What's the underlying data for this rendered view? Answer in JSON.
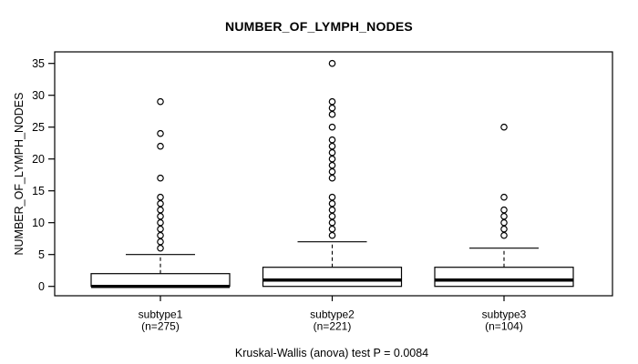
{
  "page": {
    "background_color": "#ffffff",
    "foreground_color": "#000000"
  },
  "chart_data": {
    "type": "boxplot",
    "title": "NUMBER_OF_LYMPH_NODES",
    "ylabel": "NUMBER_OF_LYMPH_NODES",
    "xlabel": "",
    "caption": "Kruskal-Wallis (anova) test P = 0.0084",
    "ylim": [
      0,
      35
    ],
    "yticks": [
      0,
      5,
      10,
      15,
      20,
      25,
      30,
      35
    ],
    "grid": false,
    "legend": "none",
    "categories": [
      "subtype1",
      "subtype2",
      "subtype3"
    ],
    "groups": [
      {
        "label": "subtype1",
        "sublabel": "(n=275)",
        "n": 275,
        "q1": 0,
        "median": 0,
        "q3": 2,
        "whisker_low": 0,
        "whisker_high": 5,
        "outliers": [
          6,
          7,
          8,
          9,
          10,
          11,
          12,
          13,
          14,
          17,
          22,
          24,
          29
        ]
      },
      {
        "label": "subtype2",
        "sublabel": "(n=221)",
        "n": 221,
        "q1": 0,
        "median": 1,
        "q3": 3,
        "whisker_low": 0,
        "whisker_high": 7,
        "outliers": [
          8,
          9,
          10,
          11,
          12,
          13,
          14,
          17,
          18,
          19,
          20,
          21,
          22,
          23,
          25,
          27,
          28,
          29,
          35
        ]
      },
      {
        "label": "subtype3",
        "sublabel": "(n=104)",
        "n": 104,
        "q1": 0,
        "median": 1,
        "q3": 3,
        "whisker_low": 0,
        "whisker_high": 6,
        "outliers": [
          8,
          9,
          10,
          11,
          12,
          14,
          25
        ]
      }
    ]
  }
}
